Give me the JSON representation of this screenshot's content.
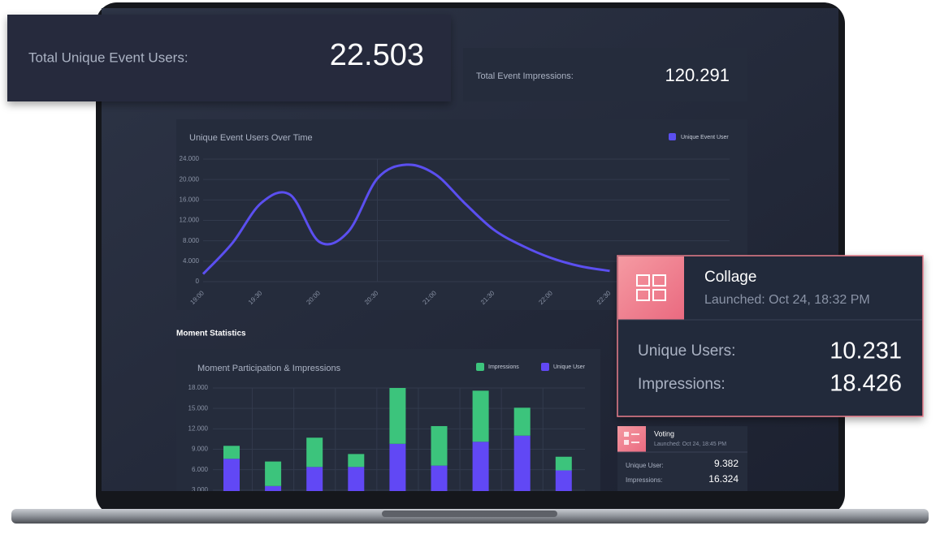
{
  "cards": {
    "total_users": {
      "label": "Total Unique Event Users:",
      "value": "22.503"
    },
    "total_impressions": {
      "label": "Total Event Impressions:",
      "value": "120.291"
    }
  },
  "line_chart": {
    "type": "line",
    "title": "Unique Event Users Over Time",
    "categories": [
      "19:00",
      null,
      "19:30",
      null,
      "20:00",
      null,
      "20:30",
      null,
      "21:00",
      null,
      "21:30",
      null,
      "22:00",
      null,
      "22:30"
    ],
    "series": [
      {
        "name": "Unique Event User",
        "color": "#5b4ff0",
        "values": [
          1500,
          7500,
          15400,
          17000,
          7800,
          9800,
          20200,
          22900,
          21000,
          15400,
          10200,
          7000,
          4600,
          3000,
          2100
        ]
      }
    ],
    "ylim": [
      0,
      24000
    ],
    "yticks": [
      0,
      {
        "value": 4000,
        "label": "4.000"
      },
      {
        "value": 8000,
        "label": "8.000"
      },
      {
        "value": 12000,
        "label": "12.000"
      },
      {
        "value": 16000,
        "label": "16.000"
      },
      {
        "value": 20000,
        "label": "20.000"
      },
      {
        "value": 24000,
        "label": "24.000"
      }
    ],
    "grid": true
  },
  "section_title": "Moment  Statistics",
  "bar_chart": {
    "type": "bar",
    "title": "Moment Participation & Impressions",
    "stacked": true,
    "series": [
      {
        "name": "Unique User",
        "color": "#6148f5",
        "values": [
          7600,
          3600,
          6400,
          6400,
          9800,
          6600,
          10100,
          11000,
          5900
        ]
      },
      {
        "name": "Impressions",
        "color": "#3cc47c",
        "values": [
          1900,
          3600,
          4300,
          1900,
          8200,
          5800,
          7500,
          4100,
          2000
        ]
      }
    ],
    "ylim": [
      0,
      18000
    ],
    "yticks": [
      {
        "value": 3000,
        "label": "3.000"
      },
      {
        "value": 6000,
        "label": "6.000"
      },
      {
        "value": 9000,
        "label": "9.000"
      },
      {
        "value": 12000,
        "label": "12.000"
      },
      {
        "value": 15000,
        "label": "15.000"
      },
      {
        "value": 18000,
        "label": "18.000"
      }
    ],
    "grid": true
  },
  "collage": {
    "title": "Collage",
    "subtitle": "Launched: Oct 24, 18:32 PM",
    "rows": [
      {
        "label": "Unique Users:",
        "value": "10.231"
      },
      {
        "label": "Impressions:",
        "value": "18.426"
      }
    ]
  },
  "voting": {
    "title": "Voting",
    "subtitle": "Launched: Oct 24, 18:45 PM",
    "rows": [
      {
        "label": "Unique User:",
        "value": "9.382"
      },
      {
        "label": "Impressions:",
        "value": "16.324"
      }
    ]
  }
}
